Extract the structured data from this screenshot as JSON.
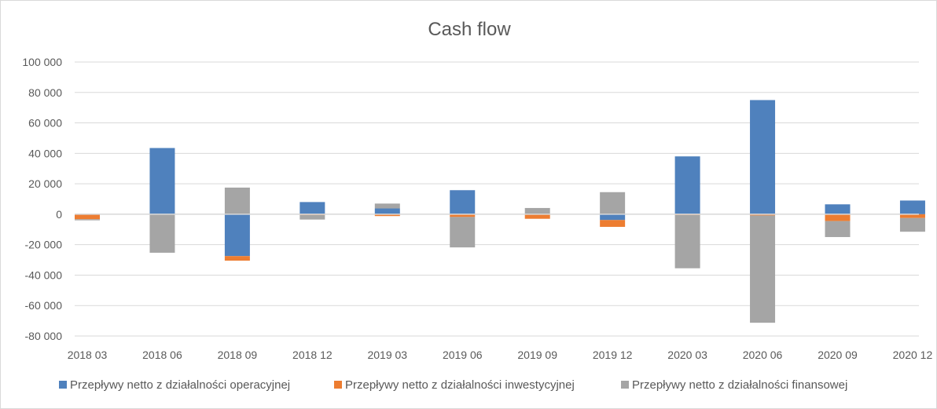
{
  "chart_data": {
    "type": "bar",
    "stacked": true,
    "title": "Cash flow",
    "categories": [
      "2018 03",
      "2018 06",
      "2018 09",
      "2018 12",
      "2019 03",
      "2019 06",
      "2019 09",
      "2019 12",
      "2020 03",
      "2020 06",
      "2020 09",
      "2020 12"
    ],
    "series": [
      {
        "name": "Przepływy netto z działalności operacyjnej",
        "color": "#4f81bd",
        "values": [
          -300,
          43500,
          -27500,
          8000,
          3800,
          15800,
          100,
          -3800,
          38000,
          75000,
          6500,
          9000
        ]
      },
      {
        "name": "Przepływy netto z działalności inwestycyjnej",
        "color": "#ed7d31",
        "values": [
          -3000,
          -300,
          -3000,
          -500,
          -1200,
          -1800,
          -3000,
          -4500,
          -500,
          -800,
          -4500,
          -2500
        ]
      },
      {
        "name": "Przepływy netto z działalności finansowej",
        "color": "#a5a5a5",
        "values": [
          -700,
          -25000,
          17500,
          -3000,
          3200,
          -20000,
          4000,
          14500,
          -35000,
          -70500,
          -10500,
          -9000
        ]
      }
    ],
    "ylim": [
      -80000,
      100000
    ],
    "yticks": [
      100000,
      80000,
      60000,
      40000,
      20000,
      0,
      -20000,
      -40000,
      -60000,
      -80000
    ],
    "ytick_labels": [
      "100 000",
      "80 000",
      "60 000",
      "40 000",
      "20 000",
      "0",
      "-20 000",
      "-40 000",
      "-60 000",
      "-80 000"
    ],
    "grid": true,
    "legend_position": "bottom"
  }
}
